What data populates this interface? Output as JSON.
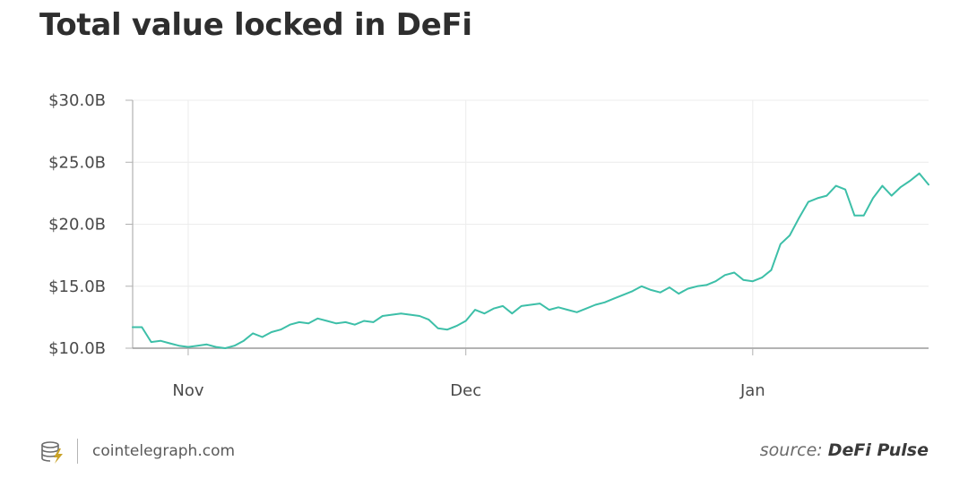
{
  "chart_data": {
    "type": "line",
    "title": "Total value locked in DeFi",
    "ylim": [
      10,
      30
    ],
    "yticks": [
      {
        "value": 30,
        "label": "$30.0B"
      },
      {
        "value": 25,
        "label": "$25.0B"
      },
      {
        "value": 20,
        "label": "$20.0B"
      },
      {
        "value": 15,
        "label": "$15.0B"
      },
      {
        "value": 10,
        "label": "$10.0B"
      }
    ],
    "xlim": [
      "2020-10-26",
      "2021-01-20"
    ],
    "xticks": [
      {
        "date": "2020-11-01",
        "label": "Nov"
      },
      {
        "date": "2020-12-01",
        "label": "Dec"
      },
      {
        "date": "2021-01-01",
        "label": "Jan"
      }
    ],
    "grid": true,
    "line_color": "#3dbfa8",
    "series": [
      {
        "x": [
          "2020-10-26",
          "2020-10-27",
          "2020-10-28",
          "2020-10-29",
          "2020-10-30",
          "2020-10-31",
          "2020-11-01",
          "2020-11-02",
          "2020-11-03",
          "2020-11-04",
          "2020-11-05",
          "2020-11-06",
          "2020-11-07",
          "2020-11-08",
          "2020-11-09",
          "2020-11-10",
          "2020-11-11",
          "2020-11-12",
          "2020-11-13",
          "2020-11-14",
          "2020-11-15",
          "2020-11-16",
          "2020-11-17",
          "2020-11-18",
          "2020-11-19",
          "2020-11-20",
          "2020-11-21",
          "2020-11-22",
          "2020-11-23",
          "2020-11-24",
          "2020-11-25",
          "2020-11-26",
          "2020-11-27",
          "2020-11-28",
          "2020-11-29",
          "2020-11-30",
          "2020-12-01",
          "2020-12-02",
          "2020-12-03",
          "2020-12-04",
          "2020-12-05",
          "2020-12-06",
          "2020-12-07",
          "2020-12-08",
          "2020-12-09",
          "2020-12-10",
          "2020-12-11",
          "2020-12-12",
          "2020-12-13",
          "2020-12-14",
          "2020-12-15",
          "2020-12-16",
          "2020-12-17",
          "2020-12-18",
          "2020-12-19",
          "2020-12-20",
          "2020-12-21",
          "2020-12-22",
          "2020-12-23",
          "2020-12-24",
          "2020-12-25",
          "2020-12-26",
          "2020-12-27",
          "2020-12-28",
          "2020-12-29",
          "2020-12-30",
          "2020-12-31",
          "2021-01-01",
          "2021-01-02",
          "2021-01-03",
          "2021-01-04",
          "2021-01-05",
          "2021-01-06",
          "2021-01-07",
          "2021-01-08",
          "2021-01-09",
          "2021-01-10",
          "2021-01-11",
          "2021-01-12",
          "2021-01-13",
          "2021-01-14",
          "2021-01-15",
          "2021-01-16",
          "2021-01-17",
          "2021-01-18",
          "2021-01-19",
          "2021-01-20"
        ],
        "values": [
          11.7,
          11.7,
          10.5,
          10.6,
          10.4,
          10.2,
          10.1,
          10.2,
          10.3,
          10.1,
          10.0,
          10.2,
          10.6,
          11.2,
          10.9,
          11.3,
          11.5,
          11.9,
          12.1,
          12.0,
          12.4,
          12.2,
          12.0,
          12.1,
          11.9,
          12.2,
          12.1,
          12.6,
          12.7,
          12.8,
          12.7,
          12.6,
          12.3,
          11.6,
          11.5,
          11.8,
          12.2,
          13.1,
          12.8,
          13.2,
          13.4,
          12.8,
          13.4,
          13.5,
          13.6,
          13.1,
          13.3,
          13.1,
          12.9,
          13.2,
          13.5,
          13.7,
          14.0,
          14.3,
          14.6,
          15.0,
          14.7,
          14.5,
          14.9,
          14.4,
          14.8,
          15.0,
          15.1,
          15.4,
          15.9,
          16.1,
          15.5,
          15.4,
          15.7,
          16.3,
          18.4,
          19.1,
          20.5,
          21.8,
          22.1,
          22.3,
          23.1,
          22.8,
          20.7,
          20.7,
          22.1,
          23.1,
          22.3,
          23.0,
          23.5,
          24.1,
          23.2
        ]
      }
    ]
  },
  "footer": {
    "site": "cointelegraph.com",
    "source_prefix": "source:",
    "source_name": "DeFi Pulse",
    "logo_color": "#c9a227"
  }
}
